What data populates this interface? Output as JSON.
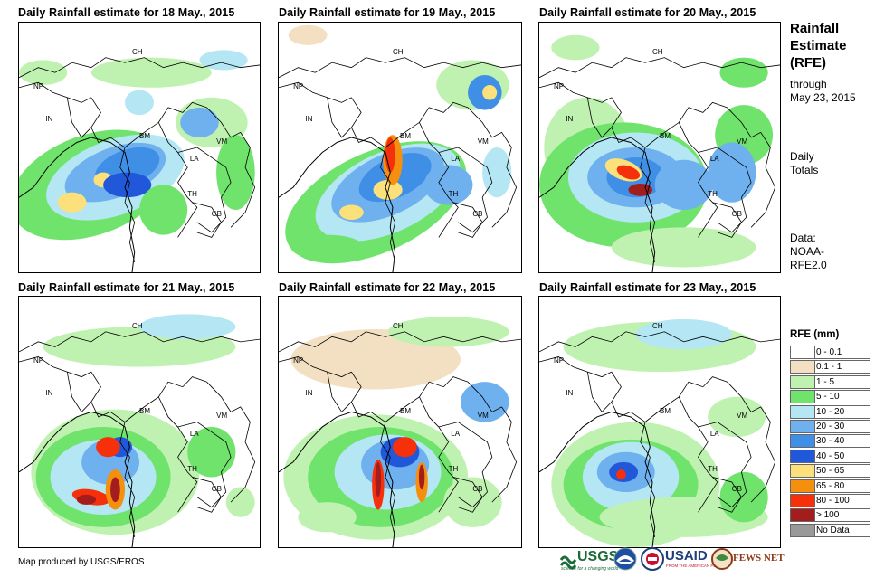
{
  "panels": [
    {
      "title": "Daily Rainfall estimate for 18 May., 2015"
    },
    {
      "title": "Daily Rainfall estimate for 19 May., 2015"
    },
    {
      "title": "Daily Rainfall estimate for 20 May., 2015"
    },
    {
      "title": "Daily Rainfall estimate for 21 May., 2015"
    },
    {
      "title": "Daily Rainfall estimate for 22 May., 2015"
    },
    {
      "title": "Daily Rainfall estimate for 23 May., 2015"
    }
  ],
  "country_labels": [
    "CH",
    "NP",
    "IN",
    "BM",
    "LA",
    "VM",
    "TH",
    "CB"
  ],
  "sidebar": {
    "title_lines": [
      "Rainfall",
      "Estimate",
      "(RFE)"
    ],
    "through_lines": [
      "through",
      "May 23, 2015"
    ],
    "totals_lines": [
      "Daily",
      "Totals"
    ],
    "data_lines": [
      "Data:",
      "NOAA-",
      "RFE2.0"
    ]
  },
  "legend": {
    "title": "RFE (mm)",
    "items": [
      {
        "label": "0 - 0.1",
        "color": "#ffffff"
      },
      {
        "label": "0.1 - 1",
        "color": "#f3dfc2"
      },
      {
        "label": "1 - 5",
        "color": "#bff2b0"
      },
      {
        "label": "5 - 10",
        "color": "#6fe36c"
      },
      {
        "label": "10 - 20",
        "color": "#b4e6f4"
      },
      {
        "label": "20 - 30",
        "color": "#6eb1ee"
      },
      {
        "label": "30 - 40",
        "color": "#3f8fe6"
      },
      {
        "label": "40 - 50",
        "color": "#2157d9"
      },
      {
        "label": "50 - 65",
        "color": "#fbe07b"
      },
      {
        "label": "65 - 80",
        "color": "#f5900e"
      },
      {
        "label": "80 - 100",
        "color": "#f5300a"
      },
      {
        "label": "> 100",
        "color": "#a31d1d"
      },
      {
        "label": "No Data",
        "color": "#999999"
      }
    ]
  },
  "footer": {
    "credit": "Map produced by USGS/EROS",
    "logos": {
      "usgs": "USGS",
      "usgs_tag": "science for a changing world",
      "usaid": "USAID",
      "usaid_tag": "FROM THE AMERICAN PEOPLE",
      "fews": "FEWS NET"
    }
  }
}
